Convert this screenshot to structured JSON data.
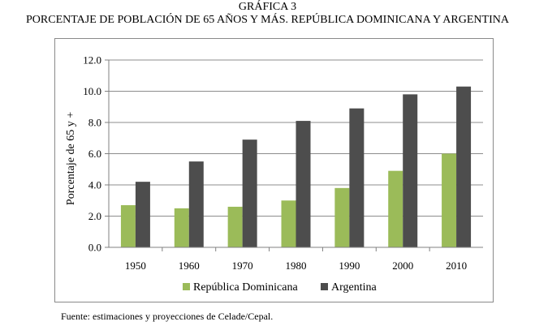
{
  "figure": {
    "label": "GRÁFICA 3",
    "title": "PORCENTAJE DE POBLACIÓN DE 65 AÑOS Y MÁS. REPÚBLICA DOMINICANA Y ARGENTINA",
    "source": "Fuente: estimaciones y proyecciones de Celade/Cepal."
  },
  "chart_data": {
    "type": "bar",
    "title": "",
    "xlabel": "",
    "ylabel": "Porcentaje de 65 y +",
    "categories": [
      "1950",
      "1960",
      "1970",
      "1980",
      "1990",
      "2000",
      "2010"
    ],
    "series": [
      {
        "name": "República Dominicana",
        "color": "#9bbb59",
        "values": [
          2.7,
          2.5,
          2.6,
          3.0,
          3.8,
          4.9,
          6.0
        ]
      },
      {
        "name": "Argentina",
        "color": "#4d4d4d",
        "values": [
          4.2,
          5.5,
          6.9,
          8.1,
          8.9,
          9.8,
          10.3
        ]
      }
    ],
    "ylim": [
      0,
      12
    ],
    "yticks": [
      "0.0",
      "2.0",
      "4.0",
      "6.0",
      "8.0",
      "10.0",
      "12.0"
    ],
    "grid": true,
    "legend": "bottom"
  }
}
